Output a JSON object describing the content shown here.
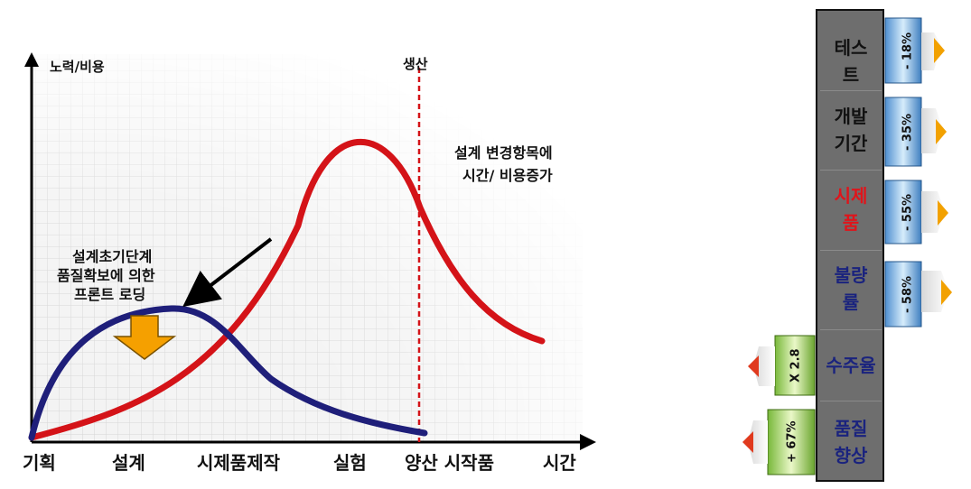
{
  "diagram": {
    "y_axis_label": "노력/비용",
    "production_label": "생산",
    "x_labels": [
      "기획",
      "설계",
      "시제품제작",
      "실험",
      "양산 시작품",
      "시간"
    ],
    "annotation_right": [
      "설계 변경항목에",
      "시간/ 비용증가"
    ],
    "annotation_left": [
      "설계초기단계",
      "품질확보에 의한",
      "프론트 로딩"
    ],
    "colors": {
      "early_curve": "#1f1f7a",
      "late_curve": "#d41318",
      "arrow": "#f5a000",
      "production_line": "#d41318"
    }
  },
  "metrics": {
    "panel_bg": "#6e6e6e",
    "rows": [
      {
        "name_lines": [
          "테스",
          "트"
        ],
        "name_color": "#111111",
        "value": "- 18%",
        "direction": "reduce"
      },
      {
        "name_lines": [
          "개발",
          "기간"
        ],
        "name_color": "#111111",
        "value": "- 35%",
        "direction": "reduce"
      },
      {
        "name_lines": [
          "시제",
          "품"
        ],
        "name_color": "#e0141b",
        "value": "- 55%",
        "direction": "reduce"
      },
      {
        "name_lines": [
          "불량",
          "률"
        ],
        "name_color": "#1a237e",
        "value": "- 58%",
        "direction": "reduce"
      },
      {
        "name_lines": [
          "수주율"
        ],
        "name_color": "#1a237e",
        "value": "X 2.8",
        "direction": "increase"
      },
      {
        "name_lines": [
          "품질",
          "향상"
        ],
        "name_color": "#1a237e",
        "value": "+ 67%",
        "direction": "increase"
      }
    ]
  }
}
